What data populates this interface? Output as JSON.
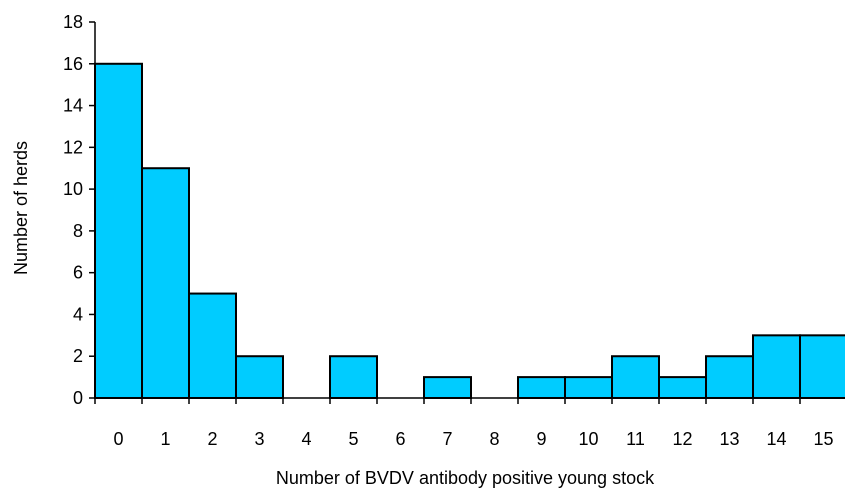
{
  "chart_data": {
    "type": "bar",
    "title": "",
    "xlabel": "Number of BVDV antibody positive young stock",
    "ylabel": "Number of herds",
    "categories": [
      "0",
      "1",
      "2",
      "3",
      "4",
      "5",
      "6",
      "7",
      "8",
      "9",
      "10",
      "11",
      "12",
      "13",
      "14",
      "15"
    ],
    "values": [
      16,
      11,
      5,
      2,
      0,
      2,
      0,
      1,
      0,
      1,
      1,
      2,
      1,
      2,
      3,
      3
    ],
    "ylim": [
      0,
      18
    ],
    "yticks": [
      0,
      2,
      4,
      6,
      8,
      10,
      12,
      14,
      16,
      18
    ],
    "grid": false,
    "legend": "none",
    "bar_color": "#00CCFF",
    "edge_color": "#000000"
  }
}
